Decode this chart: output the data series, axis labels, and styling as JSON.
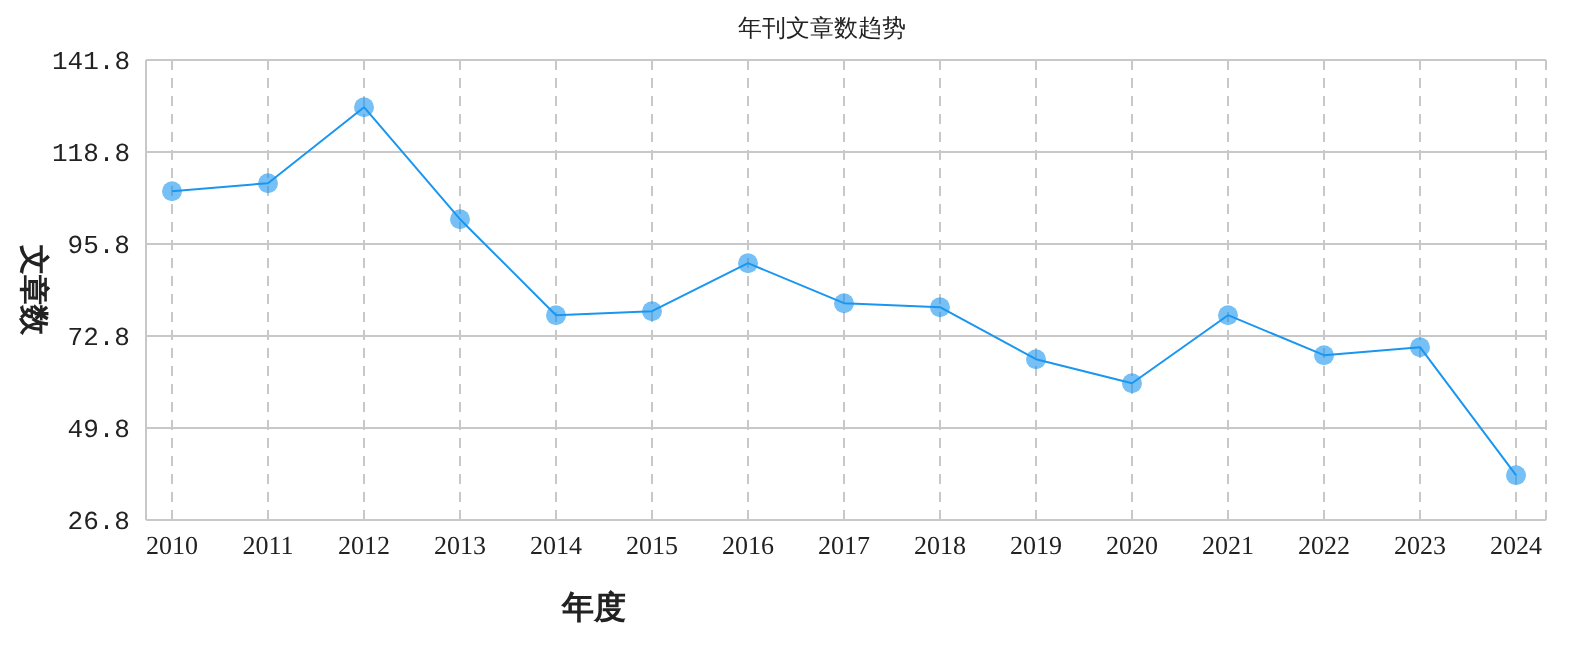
{
  "chart_data": {
    "type": "line",
    "title": "年刊文章数趋势",
    "xlabel": "年度",
    "ylabel": "文章数",
    "categories": [
      "2010",
      "2011",
      "2012",
      "2013",
      "2014",
      "2015",
      "2016",
      "2017",
      "2018",
      "2019",
      "2020",
      "2021",
      "2022",
      "2023",
      "2024"
    ],
    "series": [
      {
        "color": "#1a96f0",
        "values": [
          109,
          111,
          130,
          102,
          78,
          79,
          91,
          81,
          80,
          67,
          61,
          78,
          68,
          70,
          38
        ]
      }
    ],
    "ylim": [
      26.8,
      141.8
    ],
    "yticks": [
      26.8,
      49.8,
      72.8,
      95.8,
      118.8,
      141.8
    ],
    "grid": true,
    "legend": false,
    "marker": "circle",
    "line_style": "solid"
  }
}
